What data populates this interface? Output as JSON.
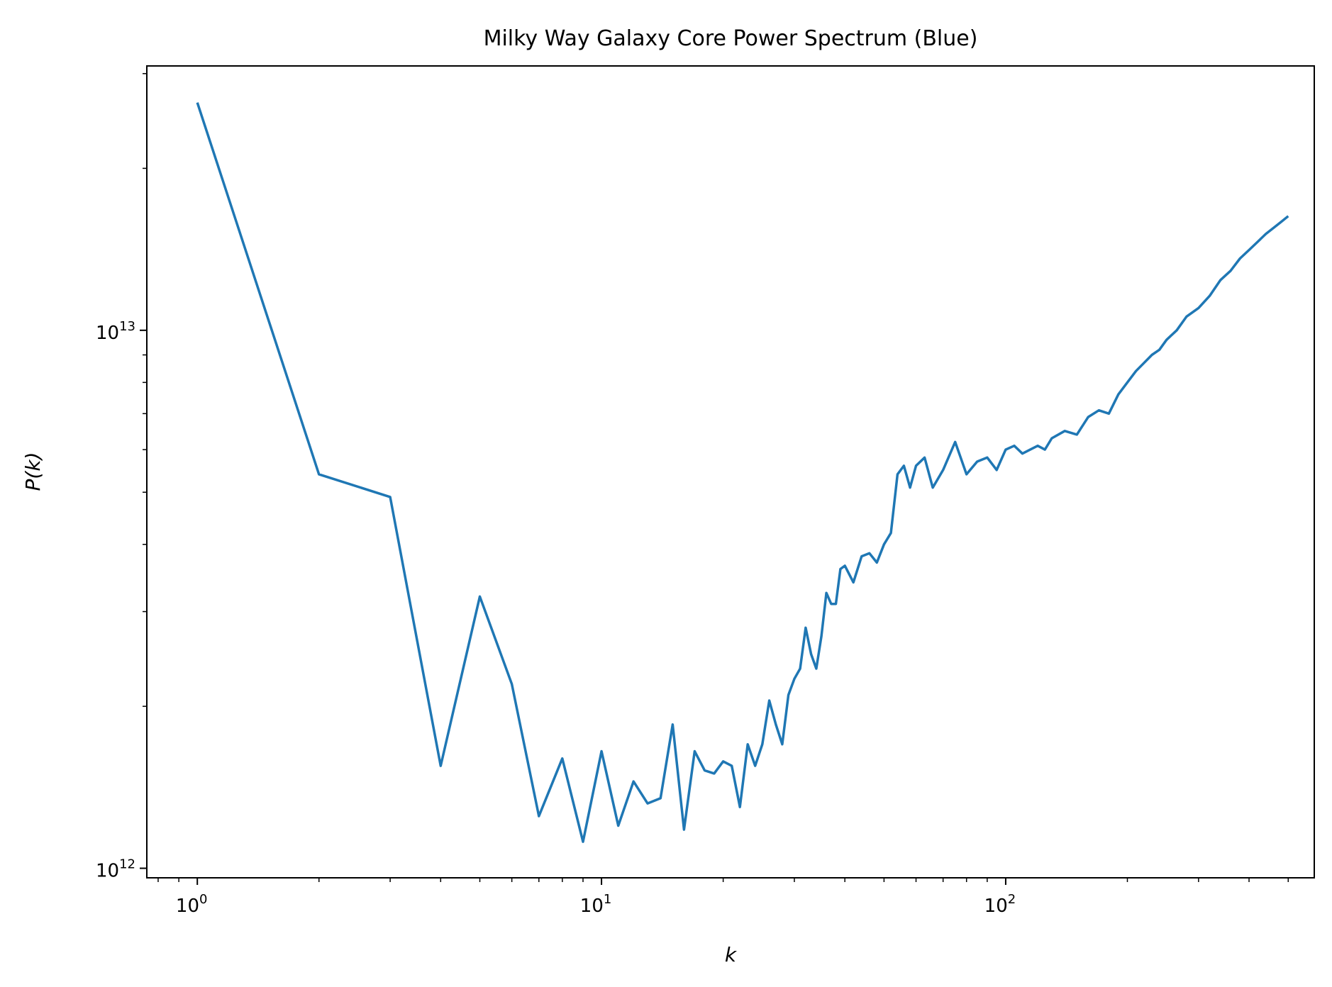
{
  "chart_data": {
    "type": "line",
    "title": "Milky Way Galaxy Core Power Spectrum (Blue)",
    "xlabel": "k",
    "ylabel": "P(k)",
    "xscale": "log",
    "yscale": "log",
    "xlim": [
      0.75,
      580
    ],
    "ylim": [
      960000000000.0,
      31000000000000.0
    ],
    "grid": false,
    "x_ticks": [
      {
        "value": 1,
        "base": "10",
        "exp": "0"
      },
      {
        "value": 10,
        "base": "10",
        "exp": "1"
      },
      {
        "value": 100,
        "base": "10",
        "exp": "2"
      }
    ],
    "y_ticks": [
      {
        "value": 1000000000000.0,
        "base": "10",
        "exp": "12"
      },
      {
        "value": 10000000000000.0,
        "base": "10",
        "exp": "13"
      }
    ],
    "color": "#1f77b4",
    "series": [
      {
        "x": [
          1,
          2,
          3,
          4,
          5,
          6,
          7,
          8,
          9,
          10,
          11,
          12,
          13,
          14,
          15,
          16,
          17,
          18,
          19,
          20,
          21,
          22,
          23,
          24,
          25,
          26,
          27,
          28,
          29,
          30,
          31,
          32,
          33,
          34,
          35,
          36,
          37,
          38,
          39,
          40,
          42,
          44,
          46,
          48,
          50,
          52,
          54,
          56,
          58,
          60,
          63,
          66,
          70,
          75,
          80,
          85,
          90,
          95,
          100,
          105,
          110,
          115,
          120,
          125,
          130,
          140,
          150,
          160,
          170,
          180,
          190,
          200,
          210,
          220,
          230,
          240,
          250,
          265,
          280,
          300,
          320,
          340,
          360,
          380,
          400,
          420,
          440,
          460,
          480,
          500
        ],
        "values": [
          26500000000000.0,
          5400000000000.0,
          4900000000000.0,
          1550000000000.0,
          3200000000000.0,
          2200000000000.0,
          1250000000000.0,
          1600000000000.0,
          1120000000000.0,
          1650000000000.0,
          1200000000000.0,
          1450000000000.0,
          1320000000000.0,
          1350000000000.0,
          1850000000000.0,
          1180000000000.0,
          1650000000000.0,
          1520000000000.0,
          1500000000000.0,
          1580000000000.0,
          1550000000000.0,
          1300000000000.0,
          1700000000000.0,
          1550000000000.0,
          1700000000000.0,
          2050000000000.0,
          1850000000000.0,
          1700000000000.0,
          2100000000000.0,
          2250000000000.0,
          2350000000000.0,
          2800000000000.0,
          2500000000000.0,
          2350000000000.0,
          2700000000000.0,
          3250000000000.0,
          3100000000000.0,
          3100000000000.0,
          3600000000000.0,
          3650000000000.0,
          3400000000000.0,
          3800000000000.0,
          3850000000000.0,
          3700000000000.0,
          4000000000000.0,
          4200000000000.0,
          5400000000000.0,
          5600000000000.0,
          5100000000000.0,
          5600000000000.0,
          5800000000000.0,
          5100000000000.0,
          5500000000000.0,
          6200000000000.0,
          5400000000000.0,
          5700000000000.0,
          5800000000000.0,
          5500000000000.0,
          6000000000000.0,
          6100000000000.0,
          5900000000000.0,
          6000000000000.0,
          6100000000000.0,
          6000000000000.0,
          6300000000000.0,
          6500000000000.0,
          6400000000000.0,
          6900000000000.0,
          7100000000000.0,
          7000000000000.0,
          7600000000000.0,
          8000000000000.0,
          8400000000000.0,
          8700000000000.0,
          9000000000000.0,
          9200000000000.0,
          9600000000000.0,
          10000000000000.0,
          10600000000000.0,
          11000000000000.0,
          11600000000000.0,
          12400000000000.0,
          12900000000000.0,
          13600000000000.0,
          14100000000000.0,
          14600000000000.0,
          15100000000000.0,
          15500000000000.0,
          15900000000000.0,
          16300000000000.0
        ]
      }
    ]
  }
}
